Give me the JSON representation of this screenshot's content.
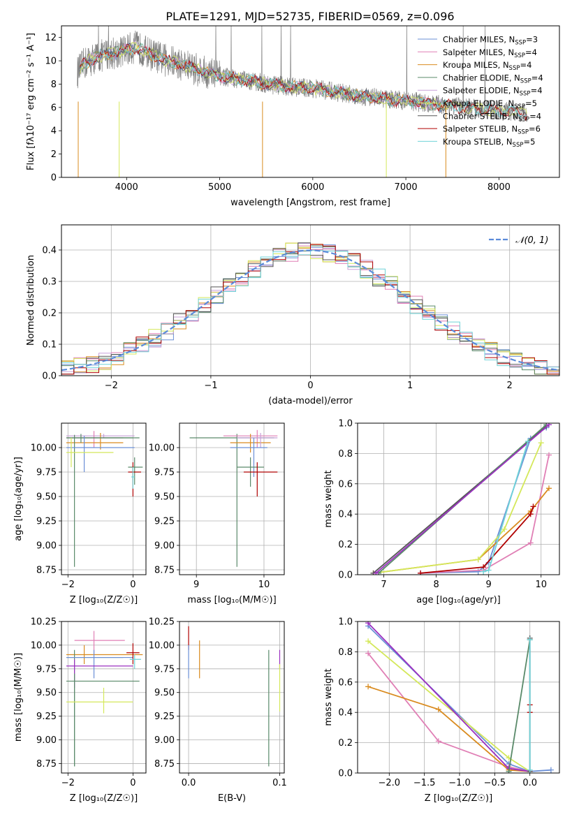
{
  "figure_title": "PLATE=1291, MJD=52735, FIBERID=0569, z=0.096",
  "palette": [
    "#6a8fd6",
    "#e07fb5",
    "#d98b1f",
    "#5a8a6a",
    "#c8a0d8",
    "#d4e85a",
    "#555555",
    "#b00000",
    "#6fd3d8"
  ],
  "chart_data": [
    {
      "id": "spectrum",
      "type": "line",
      "title": "PLATE=1291, MJD=52735, FIBERID=0569, z=0.096",
      "xlabel": "wavelength [Angstrom, rest frame]",
      "ylabel": "Flux [fλ10⁻¹⁷ erg cm⁻² s⁻¹ A⁻¹]",
      "xlim": [
        3300,
        8650
      ],
      "ylim": [
        0,
        13
      ],
      "xticks": [
        4000,
        5000,
        6000,
        7000,
        8000
      ],
      "yticks": [
        0,
        2,
        4,
        6,
        8,
        10,
        12
      ],
      "grid": false,
      "legend_position": "top-right",
      "data_x": [
        3470,
        3550,
        3650,
        3800,
        3950,
        4100,
        4250,
        4400,
        4550,
        4700,
        4850,
        5000,
        5150,
        5300,
        5450,
        5600,
        5750,
        5900,
        6050,
        6200,
        6350,
        6500,
        6650,
        6800,
        6950,
        7100,
        7250,
        7400,
        7600,
        7800,
        8000,
        8200,
        8300
      ],
      "data_y": [
        9.0,
        9.8,
        10.2,
        10.6,
        10.8,
        11.2,
        10.6,
        10.1,
        9.8,
        9.4,
        9.0,
        8.7,
        8.5,
        8.3,
        8.1,
        7.9,
        7.8,
        7.7,
        7.6,
        7.4,
        7.2,
        7.0,
        6.9,
        6.7,
        6.6,
        6.5,
        6.3,
        6.2,
        6.0,
        5.9,
        5.7,
        5.6,
        5.5
      ],
      "series": [
        {
          "name": "Chabrier MILES, N",
          "sub": "SSP",
          "suffix": "=3",
          "color": "#6a8fd6"
        },
        {
          "name": "Salpeter MILES, N",
          "sub": "SSP",
          "suffix": "=4",
          "color": "#e07fb5"
        },
        {
          "name": "Kroupa MILES, N",
          "sub": "SSP",
          "suffix": "=4",
          "color": "#d98b1f"
        },
        {
          "name": "Chabrier ELODIE, N",
          "sub": "SSP",
          "suffix": "=4",
          "color": "#5a8a6a"
        },
        {
          "name": "Salpeter ELODIE, N",
          "sub": "SSP",
          "suffix": "=4",
          "color": "#c8a0d8"
        },
        {
          "name": "Kroupa ELODIE, N",
          "sub": "SSP",
          "suffix": "=5",
          "color": "#d4e85a"
        },
        {
          "name": "Chabrier STELIB, N",
          "sub": "SSP",
          "suffix": "=4",
          "color": "#555555"
        },
        {
          "name": "Salpeter STELIB, N",
          "sub": "SSP",
          "suffix": "=6",
          "color": "#b00000"
        },
        {
          "name": "Kroupa STELIB, N",
          "sub": "SSP",
          "suffix": "=5",
          "color": "#6fd3d8"
        }
      ]
    },
    {
      "id": "residuals",
      "type": "histogram",
      "xlabel": "(data-model)/error",
      "ylabel": "Normed distribution",
      "xlim": [
        -2.5,
        2.5
      ],
      "ylim": [
        0,
        0.48
      ],
      "xticks": [
        -2,
        -1,
        0,
        1,
        2
      ],
      "yticks": [
        0.0,
        0.1,
        0.2,
        0.3,
        0.4
      ],
      "grid": true,
      "legend_position": "top-right",
      "gaussian_label": "𝒩(0, 1)",
      "gaussian_color": "#5b8bd9"
    },
    {
      "id": "age_vs_Z",
      "type": "errorbar",
      "xlabel": "Z [log₁₀(Z/Z☉)]",
      "ylabel": "age  [log₁₀(age/yr)]",
      "xlim": [
        -2.2,
        0.4
      ],
      "ylim": [
        8.7,
        10.25
      ],
      "xticks": [
        -2,
        0
      ],
      "yticks": [
        8.75,
        9.0,
        9.25,
        9.5,
        9.75,
        10.0
      ],
      "grid": true,
      "points": [
        {
          "x": -0.9,
          "y": 10.12,
          "xl": -2.05,
          "xh": 0.05,
          "yl": 10.1,
          "yh": 10.14,
          "c": "#c8a0d8"
        },
        {
          "x": -1.2,
          "y": 10.1,
          "xl": -2.05,
          "xh": -0.3,
          "yl": 10.0,
          "yh": 10.17,
          "c": "#e07fb5"
        },
        {
          "x": -1.0,
          "y": 10.05,
          "xl": -2.05,
          "xh": -0.3,
          "yl": 9.98,
          "yh": 10.15,
          "c": "#d98b1f"
        },
        {
          "x": -1.6,
          "y": 10.1,
          "xl": -2.05,
          "xh": 0.2,
          "yl": 10.05,
          "yh": 10.14,
          "c": "#5a8a6a"
        },
        {
          "x": -1.8,
          "y": 10.1,
          "xl": -2.05,
          "xh": 0.0,
          "yl": 8.78,
          "yh": 10.13,
          "c": "#5a8a6a"
        },
        {
          "x": -1.5,
          "y": 10.0,
          "xl": -2.05,
          "xh": 0.05,
          "yl": 9.75,
          "yh": 10.12,
          "c": "#6a8fd6"
        },
        {
          "x": -1.9,
          "y": 9.95,
          "xl": -2.05,
          "xh": -0.6,
          "yl": 9.8,
          "yh": 10.1,
          "c": "#d4e85a"
        },
        {
          "x": 0.05,
          "y": 9.8,
          "xl": -0.15,
          "xh": 0.3,
          "yl": 9.62,
          "yh": 9.9,
          "c": "#5a8a6a"
        },
        {
          "x": 0.0,
          "y": 9.75,
          "xl": -0.15,
          "xh": 0.25,
          "yl": 9.5,
          "yh": 9.85,
          "c": "#b00000"
        },
        {
          "x": 0.0,
          "y": 9.7,
          "xl": -0.05,
          "xh": 0.05,
          "yl": 9.58,
          "yh": 9.8,
          "c": "#6fd3d8"
        }
      ]
    },
    {
      "id": "age_vs_mass",
      "type": "errorbar",
      "xlabel": "mass [log₁₀(M/M☉)]",
      "ylabel": "",
      "xlim": [
        8.75,
        10.3
      ],
      "ylim": [
        8.7,
        10.25
      ],
      "xticks": [
        9,
        10
      ],
      "yticks": [
        8.75,
        9.0,
        9.25,
        9.5,
        9.75,
        10.0
      ],
      "grid": true,
      "points": [
        {
          "x": 9.6,
          "y": 10.1,
          "xl": 8.9,
          "xh": 10.15,
          "yl": 8.78,
          "yh": 10.14,
          "c": "#5a8a6a"
        },
        {
          "x": 9.9,
          "y": 10.12,
          "xl": 9.4,
          "xh": 10.2,
          "yl": 10.0,
          "yh": 10.18,
          "c": "#e07fb5"
        },
        {
          "x": 9.8,
          "y": 10.05,
          "xl": 9.5,
          "xh": 10.1,
          "yl": 9.95,
          "yh": 10.14,
          "c": "#d98b1f"
        },
        {
          "x": 9.95,
          "y": 10.1,
          "xl": 9.6,
          "xh": 10.2,
          "yl": 10.0,
          "yh": 10.15,
          "c": "#c8a0d8"
        },
        {
          "x": 9.85,
          "y": 10.0,
          "xl": 9.5,
          "xh": 10.05,
          "yl": 9.7,
          "yh": 10.1,
          "c": "#6a8fd6"
        },
        {
          "x": 9.8,
          "y": 9.8,
          "xl": 9.6,
          "xh": 10.0,
          "yl": 9.6,
          "yh": 9.9,
          "c": "#5a8a6a"
        },
        {
          "x": 9.9,
          "y": 9.75,
          "xl": 9.7,
          "xh": 10.2,
          "yl": 9.5,
          "yh": 9.85,
          "c": "#b00000"
        }
      ]
    },
    {
      "id": "weight_vs_age",
      "type": "line",
      "xlabel": "age  [log₁₀(age/yr)]",
      "ylabel": "mass weight",
      "xlim": [
        6.5,
        10.35
      ],
      "ylim": [
        0,
        1
      ],
      "xticks": [
        7,
        8,
        9,
        10
      ],
      "yticks": [
        0.0,
        0.2,
        0.4,
        0.6,
        0.8,
        1.0
      ],
      "grid": true,
      "series": [
        {
          "c": "#6a8fd6",
          "pts": [
            [
              7.7,
              0.01
            ],
            [
              8.8,
              0.02
            ],
            [
              9.0,
              0.08
            ],
            [
              9.8,
              0.9
            ],
            [
              10.1,
              0.97
            ]
          ]
        },
        {
          "c": "#e07fb5",
          "pts": [
            [
              7.7,
              0.01
            ],
            [
              8.9,
              0.03
            ],
            [
              9.8,
              0.21
            ],
            [
              10.15,
              0.79
            ]
          ]
        },
        {
          "c": "#d98b1f",
          "pts": [
            [
              6.8,
              0.01
            ],
            [
              8.8,
              0.1
            ],
            [
              9.8,
              0.42
            ],
            [
              10.15,
              0.57
            ]
          ]
        },
        {
          "c": "#d4e85a",
          "pts": [
            [
              6.8,
              0.01
            ],
            [
              8.8,
              0.1
            ],
            [
              9.3,
              0.3
            ],
            [
              10.0,
              0.87
            ]
          ]
        },
        {
          "c": "#b00000",
          "pts": [
            [
              7.7,
              0.01
            ],
            [
              8.9,
              0.05
            ],
            [
              9.8,
              0.4
            ],
            [
              9.85,
              0.45
            ]
          ]
        },
        {
          "c": "#555555",
          "pts": [
            [
              6.8,
              0.01
            ],
            [
              10.1,
              0.98
            ]
          ]
        },
        {
          "c": "#5a8a6a",
          "pts": [
            [
              6.9,
              0.01
            ],
            [
              10.1,
              0.99
            ]
          ]
        },
        {
          "c": "#9b30c0",
          "pts": [
            [
              6.85,
              0.01
            ],
            [
              10.15,
              0.99
            ]
          ]
        },
        {
          "c": "#6fd3d8",
          "pts": [
            [
              8.9,
              0.02
            ],
            [
              9.0,
              0.03
            ],
            [
              9.75,
              0.88
            ]
          ]
        }
      ]
    },
    {
      "id": "mass_vs_Z",
      "type": "errorbar",
      "xlabel": "Z [log₁₀(Z/Z☉)]",
      "ylabel": "mass [log₁₀(M/M☉)]",
      "xlim": [
        -2.2,
        0.4
      ],
      "ylim": [
        8.65,
        10.25
      ],
      "xticks": [
        -2,
        0
      ],
      "yticks": [
        8.75,
        9.0,
        9.25,
        9.5,
        9.75,
        10.0,
        10.25
      ],
      "grid": true,
      "points": [
        {
          "x": -1.2,
          "y": 10.05,
          "xl": -1.8,
          "xh": -0.25,
          "yl": 9.9,
          "yh": 10.15,
          "c": "#e07fb5"
        },
        {
          "x": -1.5,
          "y": 9.9,
          "xl": -2.05,
          "xh": 0.3,
          "yl": 9.8,
          "yh": 10.0,
          "c": "#d98b1f"
        },
        {
          "x": -1.8,
          "y": 9.87,
          "xl": -2.05,
          "xh": -0.3,
          "yl": 8.72,
          "yh": 9.95,
          "c": "#5a8a6a"
        },
        {
          "x": -1.2,
          "y": 9.87,
          "xl": -2.05,
          "xh": 0.0,
          "yl": 9.65,
          "yh": 9.95,
          "c": "#6a8fd6"
        },
        {
          "x": -1.8,
          "y": 9.78,
          "xl": -2.05,
          "xh": 0.0,
          "yl": 9.55,
          "yh": 9.85,
          "c": "#9b30c0"
        },
        {
          "x": -1.8,
          "y": 9.62,
          "xl": -2.05,
          "xh": 0.2,
          "yl": 8.72,
          "yh": 9.7,
          "c": "#5a8a6a"
        },
        {
          "x": -0.9,
          "y": 9.4,
          "xl": -2.05,
          "xh": 0.0,
          "yl": 9.28,
          "yh": 9.55,
          "c": "#d4e85a"
        },
        {
          "x": 0.0,
          "y": 9.92,
          "xl": -0.2,
          "xh": 0.2,
          "yl": 9.8,
          "yh": 10.02,
          "c": "#b00000"
        },
        {
          "x": 0.05,
          "y": 9.85,
          "xl": -0.1,
          "xh": 0.25,
          "yl": 9.75,
          "yh": 9.9,
          "c": "#6fd3d8"
        }
      ]
    },
    {
      "id": "mass_vs_ebv",
      "type": "errorbar",
      "xlabel": "E(B-V)",
      "ylabel": "",
      "xlim": [
        -0.01,
        0.105
      ],
      "ylim": [
        8.65,
        10.25
      ],
      "xticks": [
        0.0,
        0.1
      ],
      "yticks": [
        8.75,
        9.0,
        9.25,
        9.5,
        9.75,
        10.0,
        10.25
      ],
      "grid": true,
      "points": [
        {
          "x": 0.0,
          "y": 10.1,
          "xl": 0.0,
          "xh": 0.0,
          "yl": 9.95,
          "yh": 10.2,
          "c": "#b00000"
        },
        {
          "x": 0.0,
          "y": 9.9,
          "xl": 0.0,
          "xh": 0.0,
          "yl": 9.65,
          "yh": 10.0,
          "c": "#6a8fd6"
        },
        {
          "x": 0.012,
          "y": 9.85,
          "xl": 0.012,
          "xh": 0.012,
          "yl": 9.65,
          "yh": 10.05,
          "c": "#d98b1f"
        },
        {
          "x": 0.088,
          "y": 9.4,
          "xl": 0.088,
          "xh": 0.088,
          "yl": 8.72,
          "yh": 9.95,
          "c": "#5a8a6a"
        },
        {
          "x": 0.1,
          "y": 9.85,
          "xl": 0.1,
          "xh": 0.1,
          "yl": 9.75,
          "yh": 9.95,
          "c": "#9b30c0"
        },
        {
          "x": 0.1,
          "y": 9.55,
          "xl": 0.1,
          "xh": 0.1,
          "yl": 9.3,
          "yh": 9.8,
          "c": "#d4e85a"
        }
      ]
    },
    {
      "id": "weight_vs_Z",
      "type": "line",
      "xlabel": "Z [log₁₀(Z/Z☉)]",
      "ylabel": "mass weight",
      "xlim": [
        -2.45,
        0.42
      ],
      "ylim": [
        0,
        1
      ],
      "xticks": [
        -2.0,
        -1.5,
        -1.0,
        -0.5,
        0.0
      ],
      "yticks": [
        0.0,
        0.2,
        0.4,
        0.6,
        0.8,
        1.0
      ],
      "grid": true,
      "series": [
        {
          "c": "#6a8fd6",
          "pts": [
            [
              -2.3,
              0.97
            ],
            [
              -0.3,
              0.06
            ],
            [
              0.0,
              0.01
            ],
            [
              0.3,
              0.02
            ]
          ]
        },
        {
          "c": "#e07fb5",
          "pts": [
            [
              -2.3,
              0.79
            ],
            [
              -1.3,
              0.21
            ],
            [
              -0.3,
              0.04
            ],
            [
              0.0,
              0.01
            ]
          ]
        },
        {
          "c": "#d98b1f",
          "pts": [
            [
              -2.3,
              0.57
            ],
            [
              -1.3,
              0.42
            ],
            [
              -0.3,
              0.02
            ],
            [
              0.0,
              0.01
            ]
          ]
        },
        {
          "c": "#d4e85a",
          "pts": [
            [
              -2.3,
              0.87
            ],
            [
              -0.3,
              0.1
            ],
            [
              0.0,
              0.01
            ]
          ]
        },
        {
          "c": "#9b30c0",
          "pts": [
            [
              -2.3,
              0.99
            ],
            [
              -0.3,
              0.03
            ],
            [
              0.0,
              0.01
            ]
          ]
        },
        {
          "c": "#5a8a6a",
          "pts": [
            [
              -0.3,
              0.01
            ],
            [
              0.0,
              0.88
            ]
          ]
        },
        {
          "c": "#b00000",
          "pts": [
            [
              0.0,
              0.4
            ],
            [
              0.0,
              0.45
            ]
          ]
        },
        {
          "c": "#555555",
          "pts": [
            [
              0.0,
              0.01
            ],
            [
              0.0,
              0.89
            ]
          ]
        },
        {
          "c": "#6fd3d8",
          "pts": [
            [
              0.0,
              0.02
            ],
            [
              0.0,
              0.88
            ]
          ]
        }
      ]
    }
  ]
}
